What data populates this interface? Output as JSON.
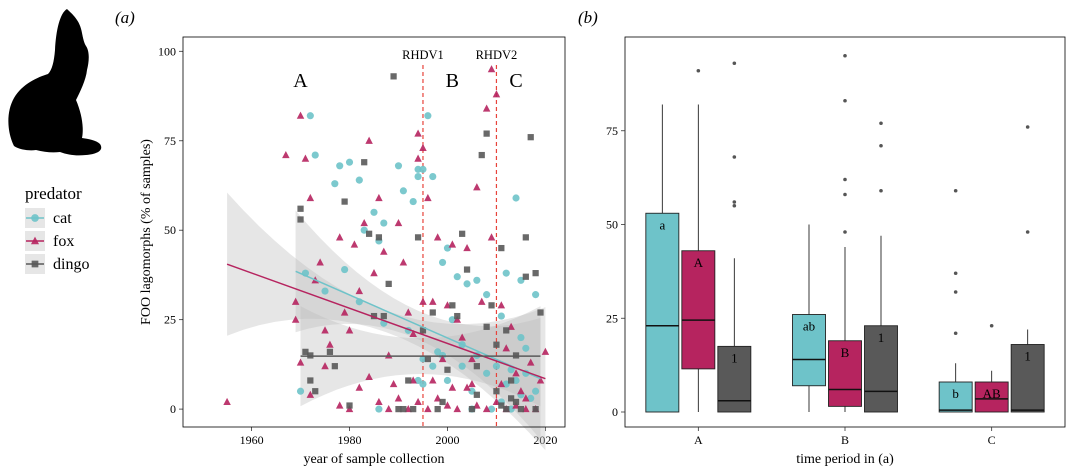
{
  "panels": {
    "a": {
      "label": "(a)"
    },
    "b": {
      "label": "(b)"
    }
  },
  "legend": {
    "title": "predator",
    "items": [
      {
        "name": "cat",
        "color": "#6ec3c9",
        "marker": "circle"
      },
      {
        "name": "fox",
        "color": "#b6245f",
        "marker": "triangle"
      },
      {
        "name": "dingo",
        "color": "#595959",
        "marker": "square"
      }
    ]
  },
  "icon": "rabbit-silhouette-icon",
  "chart_data": [
    {
      "type": "scatter",
      "panel": "a",
      "xlabel": "year of sample collection",
      "ylabel": "FOO lagomorphs (% of samples)",
      "xlim": [
        1946,
        2024
      ],
      "ylim": [
        -5,
        104
      ],
      "xticks": [
        1960,
        1980,
        2000,
        2020
      ],
      "yticks": [
        0,
        25,
        50,
        75,
        100
      ],
      "vlines": [
        {
          "x": 1995,
          "label": "RHDV1"
        },
        {
          "x": 2010,
          "label": "RHDV2"
        }
      ],
      "period_labels": [
        {
          "text": "A",
          "x": 1970,
          "y": 90
        },
        {
          "text": "B",
          "x": 2001,
          "y": 90
        },
        {
          "text": "C",
          "x": 2014,
          "y": 90
        }
      ],
      "series": [
        {
          "name": "cat",
          "points": [
            [
              1972,
              82
            ],
            [
              1973,
              71
            ],
            [
              1977,
              63
            ],
            [
              1978,
              68
            ],
            [
              1980,
              69
            ],
            [
              1982,
              64
            ],
            [
              1983,
              50
            ],
            [
              1985,
              55
            ],
            [
              1986,
              47
            ],
            [
              1987,
              52
            ],
            [
              1990,
              68
            ],
            [
              1991,
              61
            ],
            [
              1993,
              58
            ],
            [
              1994,
              65
            ],
            [
              1994,
              67
            ],
            [
              1995,
              67
            ],
            [
              1996,
              82
            ],
            [
              1997,
              65
            ],
            [
              1999,
              41
            ],
            [
              2000,
              45
            ],
            [
              2002,
              37
            ],
            [
              2004,
              35
            ],
            [
              2006,
              36
            ],
            [
              2008,
              32
            ],
            [
              2011,
              26
            ],
            [
              2012,
              38
            ],
            [
              2014,
              59
            ],
            [
              2015,
              36
            ],
            [
              2018,
              32
            ],
            [
              1970,
              5
            ],
            [
              1971,
              38
            ],
            [
              1975,
              33
            ],
            [
              1979,
              39
            ],
            [
              1982,
              30
            ],
            [
              1987,
              24
            ],
            [
              1992,
              22
            ],
            [
              1994,
              8
            ],
            [
              1995,
              7
            ],
            [
              1997,
              12
            ],
            [
              1998,
              16
            ],
            [
              2000,
              8
            ],
            [
              2003,
              12
            ],
            [
              2005,
              5
            ],
            [
              2006,
              15
            ],
            [
              2008,
              10
            ],
            [
              2010,
              12
            ],
            [
              2011,
              2
            ],
            [
              2012,
              7
            ],
            [
              2013,
              11
            ],
            [
              2014,
              8
            ],
            [
              2015,
              20
            ],
            [
              2016,
              17
            ],
            [
              2017,
              3
            ],
            [
              2018,
              5
            ],
            [
              2005,
              0
            ],
            [
              2009,
              0
            ],
            [
              2013,
              0
            ],
            [
              2015,
              4
            ],
            [
              2016,
              10
            ],
            [
              1995,
              14
            ],
            [
              1999,
              15
            ],
            [
              2001,
              25
            ],
            [
              2003,
              18
            ],
            [
              1986,
              0
            ]
          ],
          "trend": {
            "x": [
              1969,
              2019
            ],
            "y": [
              38.5,
              8.5
            ]
          }
        },
        {
          "name": "fox",
          "points": [
            [
              1955,
              2
            ],
            [
              1967,
              71
            ],
            [
              1969,
              30
            ],
            [
              1969,
              25
            ],
            [
              1970,
              82
            ],
            [
              1971,
              70
            ],
            [
              1972,
              59
            ],
            [
              1973,
              36
            ],
            [
              1974,
              41
            ],
            [
              1975,
              22
            ],
            [
              1976,
              18
            ],
            [
              1978,
              48
            ],
            [
              1979,
              27
            ],
            [
              1980,
              22
            ],
            [
              1981,
              46
            ],
            [
              1982,
              33
            ],
            [
              1983,
              52
            ],
            [
              1984,
              75
            ],
            [
              1985,
              38
            ],
            [
              1986,
              59
            ],
            [
              1987,
              44
            ],
            [
              1988,
              15
            ],
            [
              1989,
              7
            ],
            [
              1990,
              52
            ],
            [
              1991,
              41
            ],
            [
              1992,
              27
            ],
            [
              1993,
              21
            ],
            [
              1994,
              70
            ],
            [
              1994,
              77
            ],
            [
              1995,
              73
            ],
            [
              1995,
              30
            ],
            [
              1996,
              59
            ],
            [
              1997,
              30
            ],
            [
              1998,
              48
            ],
            [
              1999,
              14
            ],
            [
              2000,
              29
            ],
            [
              2001,
              46
            ],
            [
              2002,
              25
            ],
            [
              2003,
              20
            ],
            [
              2004,
              45
            ],
            [
              2005,
              14
            ],
            [
              2006,
              62
            ],
            [
              2007,
              30
            ],
            [
              2008,
              84
            ],
            [
              2009,
              48
            ],
            [
              2009,
              95
            ],
            [
              2010,
              88
            ],
            [
              2011,
              29
            ],
            [
              2012,
              17
            ],
            [
              2013,
              23
            ],
            [
              2014,
              10
            ],
            [
              2015,
              5
            ],
            [
              2016,
              3
            ],
            [
              2017,
              13
            ],
            [
              2019,
              8
            ],
            [
              2020,
              16
            ],
            [
              1970,
              13
            ],
            [
              1972,
              4
            ],
            [
              1975,
              12
            ],
            [
              1978,
              1
            ],
            [
              1980,
              0
            ],
            [
              1982,
              6
            ],
            [
              1984,
              9
            ],
            [
              1986,
              2
            ],
            [
              1988,
              0
            ],
            [
              1990,
              3
            ],
            [
              1992,
              0
            ],
            [
              1994,
              2
            ],
            [
              1996,
              0
            ],
            [
              1998,
              3
            ],
            [
              2000,
              1
            ],
            [
              2002,
              0
            ],
            [
              2004,
              6
            ],
            [
              2006,
              1
            ],
            [
              2008,
              0
            ],
            [
              2010,
              2
            ],
            [
              2012,
              0
            ],
            [
              2014,
              1
            ],
            [
              2016,
              0
            ],
            [
              2018,
              0
            ],
            [
              1993,
              8
            ],
            [
              1997,
              8
            ],
            [
              2001,
              6
            ],
            [
              2005,
              7
            ],
            [
              2011,
              7
            ]
          ],
          "trend": {
            "x": [
              1955,
              2020
            ],
            "y": [
              40.5,
              8.5
            ]
          }
        },
        {
          "name": "dingo",
          "points": [
            [
              1970,
              56
            ],
            [
              1970,
              53
            ],
            [
              1971,
              16
            ],
            [
              1972,
              15
            ],
            [
              1973,
              5
            ],
            [
              1976,
              16
            ],
            [
              1977,
              12
            ],
            [
              1979,
              58
            ],
            [
              1980,
              1
            ],
            [
              1983,
              69
            ],
            [
              1984,
              49
            ],
            [
              1985,
              26
            ],
            [
              1986,
              48
            ],
            [
              1987,
              26
            ],
            [
              1988,
              35
            ],
            [
              1989,
              93
            ],
            [
              1990,
              0
            ],
            [
              1991,
              0
            ],
            [
              1992,
              8
            ],
            [
              1993,
              0
            ],
            [
              1994,
              48
            ],
            [
              1995,
              22
            ],
            [
              1996,
              14
            ],
            [
              1997,
              27
            ],
            [
              1998,
              0
            ],
            [
              1999,
              2
            ],
            [
              2000,
              11
            ],
            [
              2001,
              29
            ],
            [
              2002,
              26
            ],
            [
              2003,
              49
            ],
            [
              2004,
              39
            ],
            [
              2005,
              0
            ],
            [
              2006,
              12
            ],
            [
              2007,
              71
            ],
            [
              2008,
              77
            ],
            [
              2009,
              29
            ],
            [
              2010,
              5
            ],
            [
              2011,
              45
            ],
            [
              2012,
              22
            ],
            [
              2013,
              8
            ],
            [
              2014,
              15
            ],
            [
              2015,
              0
            ],
            [
              2016,
              37
            ],
            [
              2017,
              76
            ],
            [
              2018,
              38
            ],
            [
              2019,
              27
            ],
            [
              2016,
              48
            ],
            [
              2008,
              23
            ],
            [
              2010,
              18
            ],
            [
              2012,
              0
            ],
            [
              2014,
              2
            ],
            [
              2018,
              0
            ],
            [
              1972,
              8
            ],
            [
              2006,
              4
            ],
            [
              2011,
              1
            ],
            [
              2013,
              3
            ]
          ],
          "trend": {
            "x": [
              1970,
              2019
            ],
            "y": [
              14.8,
              14.8
            ]
          }
        }
      ]
    },
    {
      "type": "box",
      "panel": "b",
      "xlabel": "time period in (a)",
      "ylabel": "",
      "categories": [
        "A",
        "B",
        "C"
      ],
      "ylim": [
        -4,
        100
      ],
      "yticks": [
        0,
        25,
        50,
        75
      ],
      "series": [
        {
          "name": "cat",
          "boxes": [
            {
              "q1": 0,
              "median": 23,
              "q3": 53,
              "whisker_low": 0,
              "whisker_high": 82,
              "outliers": [],
              "letter": "a"
            },
            {
              "q1": 7,
              "median": 14,
              "q3": 26,
              "whisker_low": 0,
              "whisker_high": 50,
              "outliers": [],
              "letter": "ab"
            },
            {
              "q1": 0,
              "median": 0.5,
              "q3": 8,
              "whisker_low": 0,
              "whisker_high": 13,
              "outliers": [
                21,
                32,
                37,
                59
              ],
              "letter": "b"
            }
          ]
        },
        {
          "name": "fox",
          "boxes": [
            {
              "q1": 11.5,
              "median": 24.5,
              "q3": 43,
              "whisker_low": 0,
              "whisker_high": 82,
              "outliers": [
                91
              ],
              "letter": "A"
            },
            {
              "q1": 1.5,
              "median": 6,
              "q3": 19,
              "whisker_low": 0,
              "whisker_high": 44,
              "outliers": [
                48,
                58,
                62,
                83,
                95
              ],
              "letter": "B"
            },
            {
              "q1": 0,
              "median": 3.5,
              "q3": 8,
              "whisker_low": 0,
              "whisker_high": 11,
              "outliers": [
                23
              ],
              "letter": "AB"
            }
          ]
        },
        {
          "name": "dingo",
          "boxes": [
            {
              "q1": 0,
              "median": 3,
              "q3": 17.5,
              "whisker_low": 0,
              "whisker_high": 41,
              "outliers": [
                55,
                56,
                68,
                93
              ],
              "letter": "1"
            },
            {
              "q1": 0,
              "median": 5.5,
              "q3": 23,
              "whisker_low": 0,
              "whisker_high": 47,
              "outliers": [
                59,
                71,
                77
              ],
              "letter": "1"
            },
            {
              "q1": 0,
              "median": 0.5,
              "q3": 18,
              "whisker_low": 0,
              "whisker_high": 22,
              "outliers": [
                48,
                76
              ],
              "letter": "1"
            }
          ]
        }
      ]
    }
  ]
}
